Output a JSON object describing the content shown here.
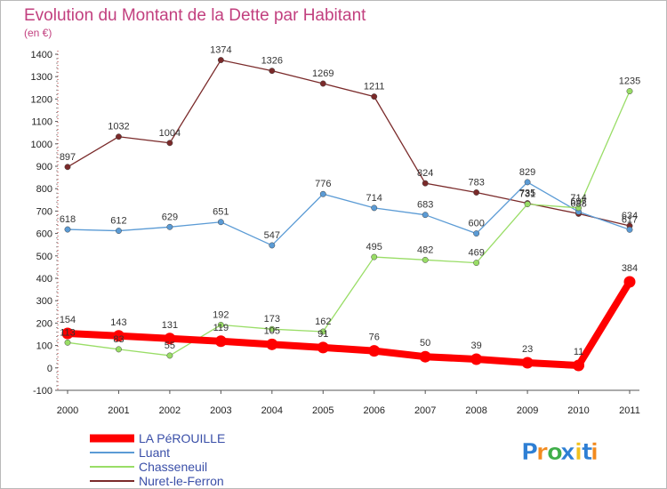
{
  "chart_data": {
    "type": "line",
    "title": "Evolution du Montant de la Dette par Habitant",
    "subtitle": "(en €)",
    "xlabel": "",
    "ylabel": "",
    "x": [
      "2000",
      "2001",
      "2002",
      "2003",
      "2004",
      "2005",
      "2006",
      "2007",
      "2008",
      "2009",
      "2010",
      "2011"
    ],
    "ylim": [
      -100,
      1400
    ],
    "yticks": [
      -100,
      0,
      100,
      200,
      300,
      400,
      500,
      600,
      700,
      800,
      900,
      1000,
      1100,
      1200,
      1300,
      1400
    ],
    "grid": false,
    "legend_position": "bottom-left",
    "series": [
      {
        "name": "LA PéROUILLE",
        "color": "#ff0000",
        "thick": true,
        "values": [
          154,
          143,
          131,
          119,
          105,
          91,
          76,
          50,
          39,
          23,
          11,
          384
        ]
      },
      {
        "name": "Luant",
        "color": "#5b9bd5",
        "thick": false,
        "values": [
          618,
          612,
          629,
          651,
          547,
          776,
          714,
          683,
          600,
          829,
          697,
          617
        ]
      },
      {
        "name": "Chasseneuil",
        "color": "#99dd66",
        "thick": false,
        "values": [
          113,
          83,
          55,
          192,
          173,
          162,
          495,
          482,
          469,
          731,
          714,
          1235
        ]
      },
      {
        "name": "Nuret-le-Ferron",
        "color": "#7a2a2a",
        "thick": false,
        "values": [
          897,
          1032,
          1004,
          1374,
          1326,
          1269,
          1211,
          824,
          783,
          735,
          688,
          634
        ]
      }
    ]
  },
  "logo": {
    "letters": [
      "P",
      "r",
      "o",
      "x",
      "i",
      "t",
      "i"
    ],
    "colors": [
      "#2e7fd4",
      "#f28a1e",
      "#3fae49",
      "#2e7fd4",
      "#f2c21e",
      "#2e7fd4",
      "#f28a1e"
    ]
  }
}
